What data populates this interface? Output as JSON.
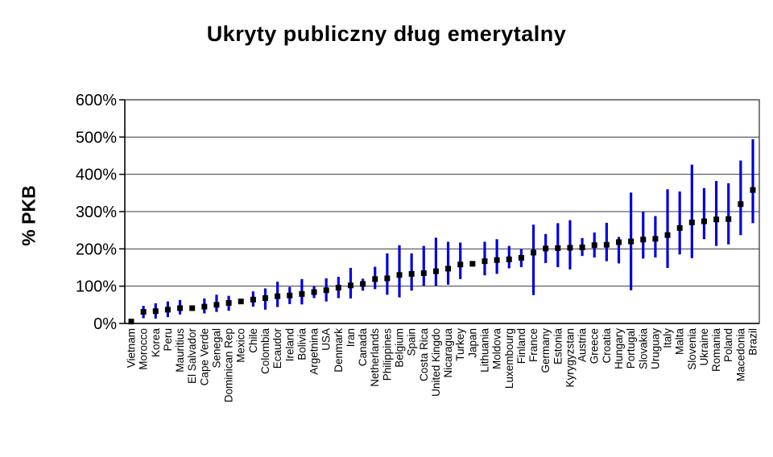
{
  "title": "Ukryty publiczny dług emerytalny",
  "chart_data": {
    "type": "scatter",
    "title": "Ukryty publiczny dług emerytalny",
    "xlabel": "",
    "ylabel": "% PKB",
    "ylim": [
      0,
      600
    ],
    "ytick_step": 100,
    "ytick_suffix": "%",
    "grid": true,
    "legend": "none",
    "marker_color": "#000000",
    "errorbar_color": "#0000dd",
    "ytick_labels": [
      "0%",
      "100%",
      "200%",
      "300%",
      "400%",
      "500%",
      "600%"
    ],
    "points": [
      {
        "label": "Vietnam",
        "value": 5,
        "lo": 5,
        "hi": 5
      },
      {
        "label": "Morocco",
        "value": 31,
        "lo": 14,
        "hi": 47
      },
      {
        "label": "Korea",
        "value": 33,
        "lo": 13,
        "hi": 54
      },
      {
        "label": "Peru",
        "value": 37,
        "lo": 17,
        "hi": 59
      },
      {
        "label": "Mauritius",
        "value": 41,
        "lo": 24,
        "hi": 63
      },
      {
        "label": "El Salvador",
        "value": 41,
        "lo": 41,
        "hi": 41
      },
      {
        "label": "Cape Verde",
        "value": 45,
        "lo": 27,
        "hi": 67
      },
      {
        "label": "Senegal",
        "value": 50,
        "lo": 31,
        "hi": 77
      },
      {
        "label": "Dominican Rep",
        "value": 55,
        "lo": 34,
        "hi": 74
      },
      {
        "label": "Mexico",
        "value": 59,
        "lo": 59,
        "hi": 59
      },
      {
        "label": "Chile",
        "value": 64,
        "lo": 45,
        "hi": 86
      },
      {
        "label": "Colombia",
        "value": 68,
        "lo": 37,
        "hi": 94
      },
      {
        "label": "Ecaudor",
        "value": 73,
        "lo": 44,
        "hi": 112
      },
      {
        "label": "Ireland",
        "value": 75,
        "lo": 52,
        "hi": 98
      },
      {
        "label": "Bolivia",
        "value": 79,
        "lo": 51,
        "hi": 119
      },
      {
        "label": "Argetnina",
        "value": 84,
        "lo": 68,
        "hi": 100
      },
      {
        "label": "USA",
        "value": 89,
        "lo": 59,
        "hi": 121
      },
      {
        "label": "Denmark",
        "value": 96,
        "lo": 68,
        "hi": 125
      },
      {
        "label": "Iran",
        "value": 102,
        "lo": 67,
        "hi": 149
      },
      {
        "label": "Canada",
        "value": 106,
        "lo": 88,
        "hi": 120
      },
      {
        "label": "Netherlands",
        "value": 119,
        "lo": 92,
        "hi": 152
      },
      {
        "label": "Philippines",
        "value": 121,
        "lo": 77,
        "hi": 188
      },
      {
        "label": "Belgium",
        "value": 130,
        "lo": 70,
        "hi": 210
      },
      {
        "label": "Spain",
        "value": 133,
        "lo": 88,
        "hi": 188
      },
      {
        "label": "Costa Rica",
        "value": 135,
        "lo": 101,
        "hi": 208
      },
      {
        "label": "United Kingdo",
        "value": 140,
        "lo": 101,
        "hi": 230
      },
      {
        "label": "Nicaragua",
        "value": 147,
        "lo": 104,
        "hi": 219
      },
      {
        "label": "Turkey",
        "value": 158,
        "lo": 119,
        "hi": 217
      },
      {
        "label": "Japan",
        "value": 160,
        "lo": 160,
        "hi": 160
      },
      {
        "label": "Lithuania",
        "value": 167,
        "lo": 129,
        "hi": 219
      },
      {
        "label": "Moldova",
        "value": 170,
        "lo": 133,
        "hi": 226
      },
      {
        "label": "Luxembourg",
        "value": 172,
        "lo": 148,
        "hi": 208
      },
      {
        "label": "Finland",
        "value": 176,
        "lo": 151,
        "hi": 199
      },
      {
        "label": "France",
        "value": 190,
        "lo": 76,
        "hi": 265
      },
      {
        "label": "Germany",
        "value": 201,
        "lo": 162,
        "hi": 240
      },
      {
        "label": "Estonia",
        "value": 202,
        "lo": 151,
        "hi": 269
      },
      {
        "label": "Kyrygyzstan",
        "value": 203,
        "lo": 145,
        "hi": 277
      },
      {
        "label": "Austria",
        "value": 204,
        "lo": 181,
        "hi": 229
      },
      {
        "label": "Greece",
        "value": 210,
        "lo": 177,
        "hi": 244
      },
      {
        "label": "Croatia",
        "value": 211,
        "lo": 167,
        "hi": 270
      },
      {
        "label": "Hungary",
        "value": 218,
        "lo": 161,
        "hi": 232
      },
      {
        "label": "Portugal",
        "value": 220,
        "lo": 89,
        "hi": 351
      },
      {
        "label": "Slovakia",
        "value": 225,
        "lo": 174,
        "hi": 299
      },
      {
        "label": "Uruguay",
        "value": 227,
        "lo": 177,
        "hi": 288
      },
      {
        "label": "Italy",
        "value": 237,
        "lo": 149,
        "hi": 360
      },
      {
        "label": "Malta",
        "value": 256,
        "lo": 185,
        "hi": 354
      },
      {
        "label": "Slovenia",
        "value": 271,
        "lo": 175,
        "hi": 426
      },
      {
        "label": "Ukraine",
        "value": 274,
        "lo": 226,
        "hi": 363
      },
      {
        "label": "Romania",
        "value": 279,
        "lo": 208,
        "hi": 382
      },
      {
        "label": "Poland",
        "value": 280,
        "lo": 212,
        "hi": 376
      },
      {
        "label": "Macedonia",
        "value": 320,
        "lo": 237,
        "hi": 437
      },
      {
        "label": "Brazil",
        "value": 358,
        "lo": 269,
        "hi": 494
      }
    ]
  }
}
